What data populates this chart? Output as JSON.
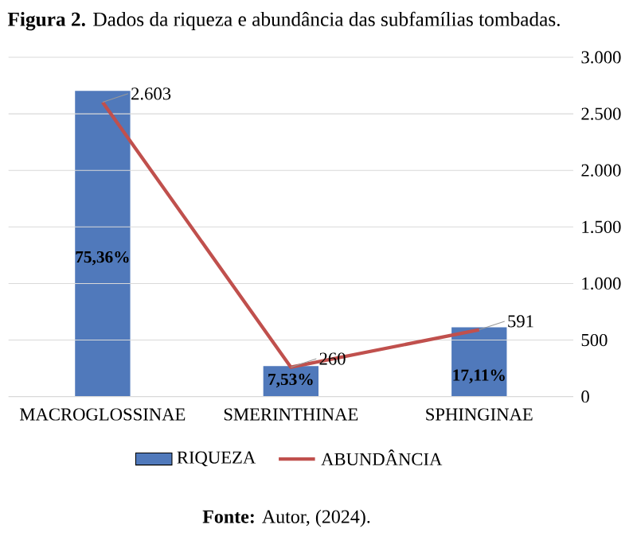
{
  "chart_data": {
    "type": "bar",
    "title": "**Figura 2.** Dados da riqueza e abundância das subfamílias tombadas.",
    "categories": [
      "MACROGLOSSINAE",
      "SMERINTHINAE",
      "SPHINGINAE"
    ],
    "series": [
      {
        "name": "RIQUEZA",
        "color": "#5079bb",
        "values": [
          75.36,
          7.53,
          17.11
        ],
        "value_labels": [
          "75,36%",
          "7,53%",
          "17,11%"
        ]
      },
      {
        "name": "ABUNDÂNCIA",
        "type": "line",
        "axis": "y2",
        "color": "#c0504d",
        "values": [
          2603,
          260,
          591
        ],
        "value_labels": [
          "2.603",
          "260",
          "591"
        ]
      }
    ],
    "y2lim": [
      0,
      3000
    ],
    "y2ticks": [
      0,
      500,
      {
        "value": 1000,
        "label": "1.000"
      },
      {
        "value": 1500,
        "label": "1.500"
      },
      {
        "value": 2000,
        "label": "2.000"
      },
      {
        "value": 2500,
        "label": "2.500"
      },
      {
        "value": 3000,
        "label": "3.000"
      }
    ],
    "grid": "y",
    "legend": "bottom",
    "marker": "none",
    "annotations": [
      "**Fonte:** Autor, (2024)."
    ]
  }
}
